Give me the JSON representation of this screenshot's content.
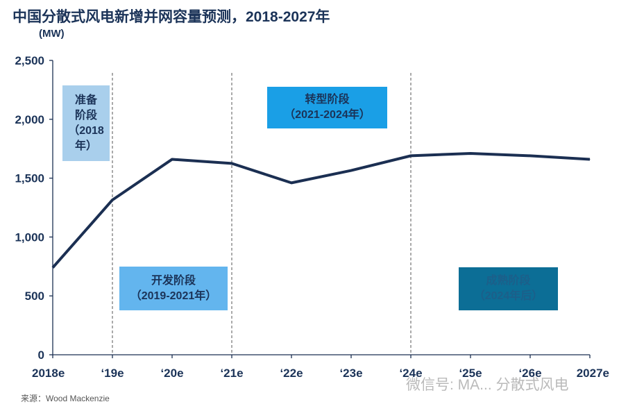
{
  "chart_data": {
    "type": "line",
    "title": "中国分散式风电新增并网容量预测，2018-2027年",
    "ylabel": "(MW)",
    "xlabel": "",
    "categories": [
      "2018e",
      "‘19e",
      "‘20e",
      "‘21e",
      "‘22e",
      "‘23e",
      "‘24e",
      "‘25e",
      "‘26e",
      "2027e"
    ],
    "values": [
      740,
      1315,
      1660,
      1625,
      1460,
      1565,
      1690,
      1710,
      1690,
      1660
    ],
    "ylim": [
      0,
      2500
    ],
    "yticks": [
      0,
      500,
      1000,
      1500,
      2000,
      2500
    ],
    "ytick_labels": [
      "0",
      "500",
      "1,000",
      "1,500",
      "2,000",
      "2,500"
    ],
    "grid": false,
    "line_color": "#1b2f52",
    "phase_dividers": [
      "‘19e",
      "‘21e",
      "‘24e"
    ],
    "annotations": [
      {
        "line1": "准备阶段",
        "line2": "（2018年）",
        "color": "#a9cfec",
        "text_color": "#1b3358"
      },
      {
        "line1": "开发阶段",
        "line2": "（2019-2021年）",
        "color": "#63b5ee",
        "text_color": "#1b3358"
      },
      {
        "line1": "转型阶段",
        "line2": "（2021-2024年）",
        "color": "#1a9fe6",
        "text_color": "#1b3358"
      },
      {
        "line1": "成熟阶段",
        "line2": "（2024年后）",
        "color": "#0c6e96",
        "text_color": "#1c5f8a"
      }
    ]
  },
  "source": "来源：Wood Mackenzie",
  "watermark": "微信号: MA... 分散式风电"
}
